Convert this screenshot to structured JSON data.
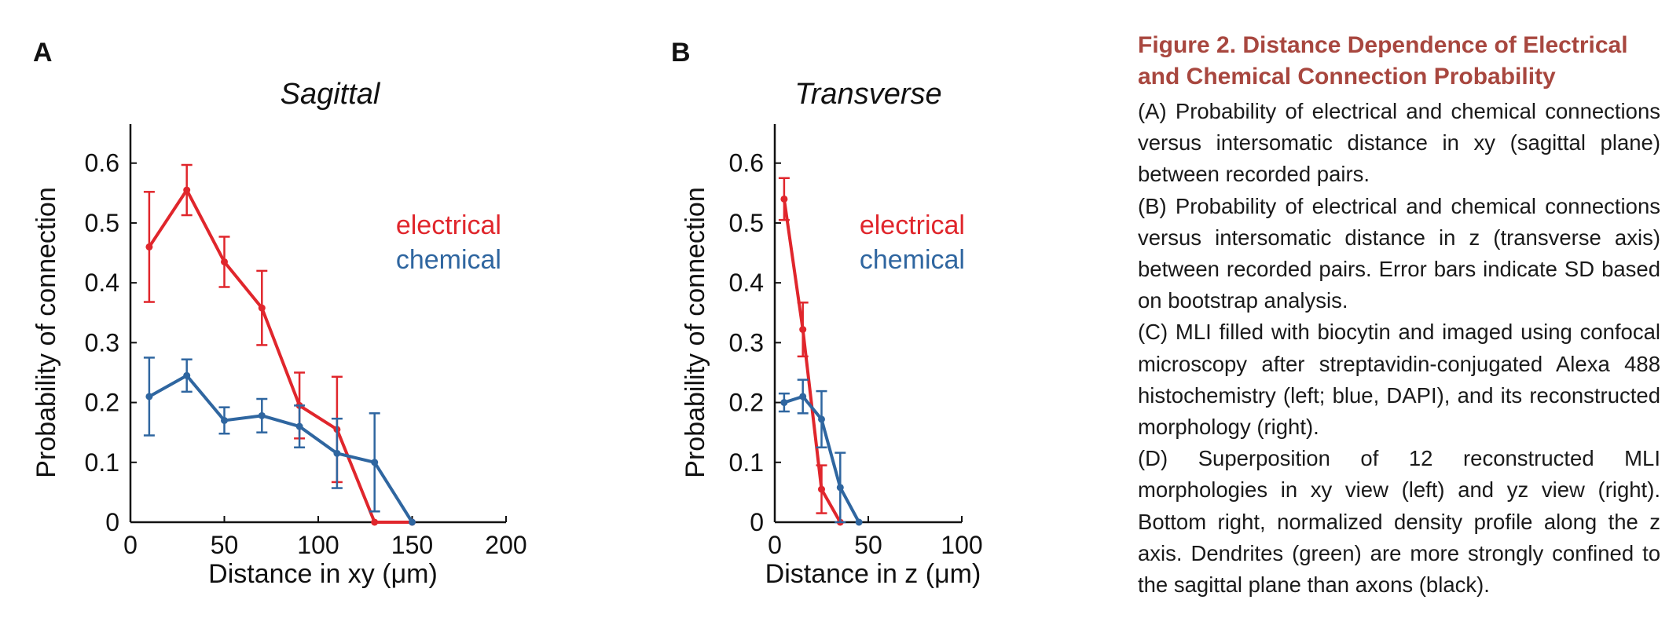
{
  "figure": {
    "caption_title": "Figure 2. Distance Dependence of Electrical and Chemical Connection Probability",
    "caption_paragraphs": [
      "(A) Probability of electrical and chemical connections versus intersomatic distance in xy (sagittal plane) between recorded pairs.",
      "(B) Probability of electrical and chemical connections versus intersomatic distance in z (transverse axis) between recorded pairs. Error bars indicate SD based on bootstrap analysis.",
      "(C) MLI filled with biocytin and imaged using confocal microscopy after streptavidin-conjugated Alexa 488 histochemistry (left; blue, DAPI), and its reconstructed morphology (right).",
      "(D) Superposition of 12 reconstructed MLI morphologies in xy view (left) and yz view (right). Bottom right, normalized density profile along the z axis. Dendrites (green) are more strongly confined to the sagittal plane than axons (black)."
    ],
    "colors": {
      "electrical": "#e0262c",
      "chemical": "#2f66a0",
      "caption_title": "#a8473f"
    }
  },
  "chart_data": [
    {
      "type": "line",
      "panel_label": "A",
      "title": "Sagittal",
      "xlabel": "Distance in xy (μm)",
      "ylabel": "Probability of connection",
      "xlim": [
        0,
        200
      ],
      "ylim": [
        0,
        0.66
      ],
      "xticks": [
        "0",
        "50",
        "100",
        "150",
        "200"
      ],
      "yticks": [
        "0",
        "0.1",
        "0.2",
        "0.3",
        "0.4",
        "0.5",
        "0.6"
      ],
      "legend_position": "top-right",
      "grid": false,
      "series": [
        {
          "name": "electrical",
          "color": "#e0262c",
          "x": [
            10,
            30,
            50,
            70,
            90,
            110,
            130,
            150
          ],
          "y": [
            0.46,
            0.555,
            0.435,
            0.358,
            0.195,
            0.155,
            0.0,
            0.0
          ],
          "err": [
            0.092,
            0.042,
            0.042,
            0.062,
            0.055,
            0.088,
            null,
            null
          ]
        },
        {
          "name": "chemical",
          "color": "#2f66a0",
          "x": [
            10,
            30,
            50,
            70,
            90,
            110,
            130,
            150
          ],
          "y": [
            0.21,
            0.245,
            0.17,
            0.178,
            0.16,
            0.115,
            0.1,
            0.0
          ],
          "err": [
            0.065,
            0.027,
            0.022,
            0.028,
            0.035,
            0.058,
            0.082,
            null
          ]
        }
      ]
    },
    {
      "type": "line",
      "panel_label": "B",
      "title": "Transverse",
      "xlabel": "Distance in z (μm)",
      "ylabel": "Probability of connection",
      "xlim": [
        0,
        100
      ],
      "ylim": [
        0,
        0.66
      ],
      "xticks": [
        "0",
        "50",
        "100"
      ],
      "yticks": [
        "0",
        "0.1",
        "0.2",
        "0.3",
        "0.4",
        "0.5",
        "0.6"
      ],
      "legend_position": "top-right",
      "grid": false,
      "series": [
        {
          "name": "electrical",
          "color": "#e0262c",
          "x": [
            5,
            15,
            25,
            35
          ],
          "y": [
            0.54,
            0.322,
            0.055,
            0.0
          ],
          "err": [
            0.035,
            0.045,
            0.04,
            null
          ]
        },
        {
          "name": "chemical",
          "color": "#2f66a0",
          "x": [
            5,
            15,
            25,
            35,
            45
          ],
          "y": [
            0.2,
            0.21,
            0.172,
            0.058,
            0.0
          ],
          "err": [
            0.015,
            0.028,
            0.047,
            0.058,
            null
          ]
        }
      ]
    }
  ]
}
